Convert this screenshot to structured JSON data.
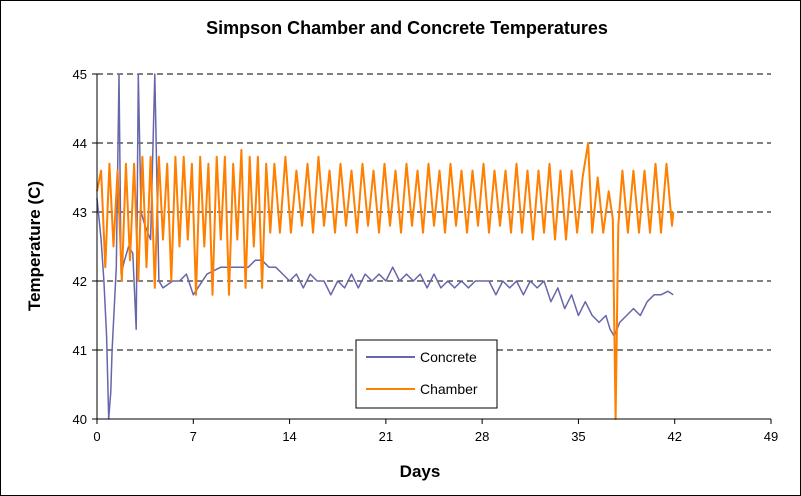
{
  "chart_data": {
    "type": "line",
    "title": "Simpson Chamber and Concrete Temperatures",
    "xlabel": "Days",
    "ylabel": "Temperature (C)",
    "xlim": [
      0,
      49
    ],
    "ylim": [
      40,
      45
    ],
    "xticks": [
      0,
      7,
      14,
      21,
      28,
      35,
      42,
      49
    ],
    "yticks": [
      40,
      41,
      42,
      43,
      44,
      45
    ],
    "grid": "horizontal dashed",
    "legend_position": "bottom-center",
    "series": [
      {
        "name": "Concrete",
        "color": "#6666aa",
        "points": [
          [
            0,
            43.2
          ],
          [
            0.3,
            42.6
          ],
          [
            0.5,
            42.0
          ],
          [
            0.7,
            41.2
          ],
          [
            0.85,
            40.0
          ],
          [
            1.0,
            40.4
          ],
          [
            1.1,
            41.0
          ],
          [
            1.25,
            41.6
          ],
          [
            1.4,
            42.2
          ],
          [
            1.6,
            45.0
          ],
          [
            1.75,
            42.1
          ],
          [
            2.0,
            42.3
          ],
          [
            2.3,
            42.5
          ],
          [
            2.6,
            42.4
          ],
          [
            2.85,
            41.3
          ],
          [
            3.0,
            45.0
          ],
          [
            3.2,
            43.0
          ],
          [
            3.5,
            42.8
          ],
          [
            3.9,
            42.6
          ],
          [
            4.2,
            45.0
          ],
          [
            4.5,
            42.0
          ],
          [
            4.8,
            41.9
          ],
          [
            5.5,
            42.0
          ],
          [
            6.0,
            42.0
          ],
          [
            6.5,
            42.1
          ],
          [
            7.0,
            41.8
          ],
          [
            8.0,
            42.1
          ],
          [
            9.0,
            42.2
          ],
          [
            10.0,
            42.2
          ],
          [
            11.0,
            42.2
          ],
          [
            11.5,
            42.3
          ],
          [
            12.0,
            42.3
          ],
          [
            12.5,
            42.2
          ],
          [
            13.0,
            42.2
          ],
          [
            13.5,
            42.1
          ],
          [
            14.0,
            42.0
          ],
          [
            14.5,
            42.1
          ],
          [
            15.0,
            41.9
          ],
          [
            15.5,
            42.1
          ],
          [
            16.0,
            42.0
          ],
          [
            16.5,
            42.0
          ],
          [
            17.0,
            41.8
          ],
          [
            17.5,
            42.0
          ],
          [
            18.0,
            41.9
          ],
          [
            18.5,
            42.1
          ],
          [
            19.0,
            41.9
          ],
          [
            19.5,
            42.1
          ],
          [
            20.0,
            42.0
          ],
          [
            20.5,
            42.1
          ],
          [
            21.0,
            42.0
          ],
          [
            21.5,
            42.2
          ],
          [
            22.0,
            42.0
          ],
          [
            22.5,
            42.1
          ],
          [
            23.0,
            42.0
          ],
          [
            23.5,
            42.1
          ],
          [
            24.0,
            41.9
          ],
          [
            24.5,
            42.1
          ],
          [
            25.0,
            41.9
          ],
          [
            25.5,
            42.0
          ],
          [
            26.0,
            41.9
          ],
          [
            26.5,
            42.0
          ],
          [
            27.0,
            41.9
          ],
          [
            27.5,
            42.0
          ],
          [
            28.0,
            42.0
          ],
          [
            28.5,
            42.0
          ],
          [
            29.0,
            41.8
          ],
          [
            29.5,
            42.0
          ],
          [
            30.0,
            41.9
          ],
          [
            30.5,
            42.0
          ],
          [
            31.0,
            41.8
          ],
          [
            31.5,
            42.0
          ],
          [
            32.0,
            41.9
          ],
          [
            32.5,
            42.0
          ],
          [
            33.0,
            41.7
          ],
          [
            33.5,
            41.9
          ],
          [
            34.0,
            41.6
          ],
          [
            34.5,
            41.8
          ],
          [
            35.0,
            41.5
          ],
          [
            35.5,
            41.7
          ],
          [
            36.0,
            41.5
          ],
          [
            36.5,
            41.4
          ],
          [
            37.0,
            41.5
          ],
          [
            37.3,
            41.3
          ],
          [
            37.6,
            41.2
          ],
          [
            38.0,
            41.4
          ],
          [
            38.5,
            41.5
          ],
          [
            39.0,
            41.6
          ],
          [
            39.5,
            41.5
          ],
          [
            40.0,
            41.7
          ],
          [
            40.5,
            41.8
          ],
          [
            41.0,
            41.8
          ],
          [
            41.5,
            41.85
          ],
          [
            41.9,
            41.8
          ]
        ]
      },
      {
        "name": "Chamber",
        "color": "#ff7f00",
        "points": [
          [
            0,
            43.3
          ],
          [
            0.3,
            43.6
          ],
          [
            0.6,
            42.2
          ],
          [
            0.9,
            43.7
          ],
          [
            1.2,
            42.5
          ],
          [
            1.5,
            43.6
          ],
          [
            1.8,
            42.0
          ],
          [
            2.1,
            43.7
          ],
          [
            2.4,
            42.3
          ],
          [
            2.7,
            43.7
          ],
          [
            3.0,
            42.0
          ],
          [
            3.3,
            43.8
          ],
          [
            3.6,
            42.2
          ],
          [
            3.9,
            43.8
          ],
          [
            4.2,
            41.9
          ],
          [
            4.5,
            43.8
          ],
          [
            4.8,
            42.6
          ],
          [
            5.1,
            43.7
          ],
          [
            5.4,
            42.0
          ],
          [
            5.7,
            43.8
          ],
          [
            6.0,
            42.5
          ],
          [
            6.3,
            43.8
          ],
          [
            6.6,
            42.6
          ],
          [
            6.9,
            43.7
          ],
          [
            7.2,
            41.8
          ],
          [
            7.5,
            43.8
          ],
          [
            7.8,
            42.5
          ],
          [
            8.1,
            43.7
          ],
          [
            8.4,
            41.8
          ],
          [
            8.7,
            43.8
          ],
          [
            9.0,
            42.6
          ],
          [
            9.3,
            43.8
          ],
          [
            9.6,
            41.8
          ],
          [
            9.9,
            43.7
          ],
          [
            10.2,
            42.6
          ],
          [
            10.5,
            43.9
          ],
          [
            10.8,
            41.9
          ],
          [
            11.1,
            43.8
          ],
          [
            11.4,
            42.5
          ],
          [
            11.7,
            43.8
          ],
          [
            12.0,
            41.9
          ],
          [
            12.3,
            43.7
          ],
          [
            12.6,
            42.7
          ],
          [
            12.9,
            43.7
          ],
          [
            13.3,
            42.7
          ],
          [
            13.7,
            43.8
          ],
          [
            14.1,
            42.7
          ],
          [
            14.5,
            43.6
          ],
          [
            14.9,
            42.8
          ],
          [
            15.3,
            43.7
          ],
          [
            15.7,
            42.7
          ],
          [
            16.1,
            43.8
          ],
          [
            16.5,
            42.8
          ],
          [
            16.9,
            43.6
          ],
          [
            17.3,
            42.7
          ],
          [
            17.7,
            43.7
          ],
          [
            18.1,
            42.8
          ],
          [
            18.5,
            43.6
          ],
          [
            18.9,
            42.7
          ],
          [
            19.3,
            43.7
          ],
          [
            19.7,
            42.8
          ],
          [
            20.1,
            43.6
          ],
          [
            20.5,
            42.7
          ],
          [
            20.9,
            43.7
          ],
          [
            21.3,
            42.8
          ],
          [
            21.7,
            43.6
          ],
          [
            22.1,
            42.7
          ],
          [
            22.5,
            43.7
          ],
          [
            22.9,
            42.8
          ],
          [
            23.3,
            43.6
          ],
          [
            23.7,
            42.7
          ],
          [
            24.1,
            43.7
          ],
          [
            24.5,
            42.8
          ],
          [
            24.9,
            43.6
          ],
          [
            25.3,
            42.7
          ],
          [
            25.7,
            43.7
          ],
          [
            26.1,
            42.8
          ],
          [
            26.5,
            43.6
          ],
          [
            26.9,
            42.7
          ],
          [
            27.3,
            43.6
          ],
          [
            27.7,
            42.8
          ],
          [
            28.1,
            43.7
          ],
          [
            28.5,
            42.7
          ],
          [
            28.9,
            43.6
          ],
          [
            29.3,
            42.8
          ],
          [
            29.7,
            43.6
          ],
          [
            30.1,
            42.7
          ],
          [
            30.5,
            43.7
          ],
          [
            30.9,
            42.7
          ],
          [
            31.3,
            43.6
          ],
          [
            31.7,
            42.6
          ],
          [
            32.1,
            43.6
          ],
          [
            32.5,
            42.7
          ],
          [
            32.9,
            43.7
          ],
          [
            33.3,
            42.6
          ],
          [
            33.7,
            43.6
          ],
          [
            34.1,
            42.6
          ],
          [
            34.5,
            43.6
          ],
          [
            34.9,
            42.7
          ],
          [
            35.3,
            43.5
          ],
          [
            35.7,
            44.0
          ],
          [
            36.0,
            42.7
          ],
          [
            36.4,
            43.5
          ],
          [
            36.8,
            42.7
          ],
          [
            37.2,
            43.3
          ],
          [
            37.5,
            42.9
          ],
          [
            37.7,
            40.0
          ],
          [
            37.9,
            42.8
          ],
          [
            38.2,
            43.6
          ],
          [
            38.6,
            42.7
          ],
          [
            39.0,
            43.6
          ],
          [
            39.4,
            42.7
          ],
          [
            39.8,
            43.6
          ],
          [
            40.2,
            42.7
          ],
          [
            40.6,
            43.7
          ],
          [
            41.0,
            42.7
          ],
          [
            41.4,
            43.7
          ],
          [
            41.8,
            42.8
          ],
          [
            41.9,
            43.0
          ]
        ]
      }
    ]
  }
}
